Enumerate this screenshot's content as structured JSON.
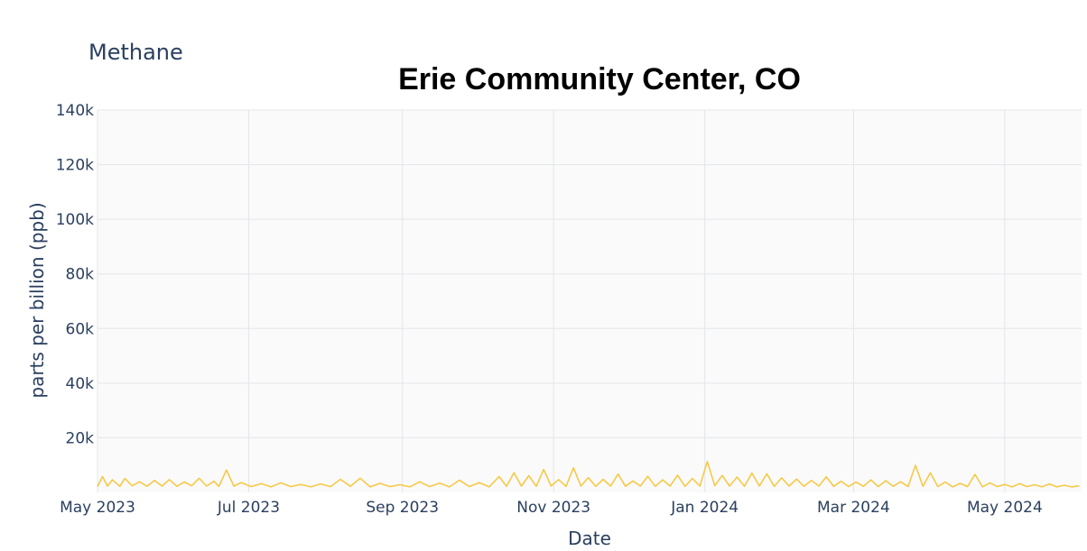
{
  "chart_data": {
    "type": "line",
    "title": "Erie Community Center, CO",
    "subtitle": "Methane",
    "xlabel": "Date",
    "ylabel": "parts per billion (ppb)",
    "x_tick_labels": [
      "May 2023",
      "Jul 2023",
      "Sep 2023",
      "Nov 2023",
      "Jan 2024",
      "Mar 2024",
      "May 2024"
    ],
    "x_ticks": [
      "2023-05-01",
      "2023-07-01",
      "2023-09-01",
      "2023-11-01",
      "2024-01-01",
      "2024-03-01",
      "2024-05-01"
    ],
    "xlim": [
      "2023-05-01",
      "2024-06-01"
    ],
    "ylim": [
      0,
      140000
    ],
    "y_ticks": [
      20000,
      40000,
      60000,
      80000,
      100000,
      120000,
      140000
    ],
    "y_tick_labels": [
      "20k",
      "40k",
      "60k",
      "80k",
      "100k",
      "120k",
      "140k"
    ],
    "grid": true,
    "legend": "none",
    "colors": {
      "line": "#f7c948",
      "grid": "#e3e6ea",
      "plot_background": "#fafafa",
      "text": "#2a3f5f"
    },
    "series": [
      {
        "x": [
          "2023-05-01",
          "2023-05-03",
          "2023-05-05",
          "2023-05-07",
          "2023-05-10",
          "2023-05-12",
          "2023-05-15",
          "2023-05-18",
          "2023-05-21",
          "2023-05-24",
          "2023-05-27",
          "2023-05-30",
          "2023-06-02",
          "2023-06-05",
          "2023-06-08",
          "2023-06-11",
          "2023-06-14",
          "2023-06-17",
          "2023-06-19",
          "2023-06-22",
          "2023-06-25",
          "2023-06-28",
          "2023-07-02",
          "2023-07-06",
          "2023-07-10",
          "2023-07-14",
          "2023-07-18",
          "2023-07-22",
          "2023-07-26",
          "2023-07-30",
          "2023-08-03",
          "2023-08-07",
          "2023-08-11",
          "2023-08-15",
          "2023-08-19",
          "2023-08-23",
          "2023-08-27",
          "2023-08-31",
          "2023-09-04",
          "2023-09-08",
          "2023-09-12",
          "2023-09-16",
          "2023-09-20",
          "2023-09-24",
          "2023-09-28",
          "2023-10-02",
          "2023-10-06",
          "2023-10-10",
          "2023-10-13",
          "2023-10-16",
          "2023-10-19",
          "2023-10-22",
          "2023-10-25",
          "2023-10-28",
          "2023-10-31",
          "2023-11-03",
          "2023-11-06",
          "2023-11-09",
          "2023-11-12",
          "2023-11-15",
          "2023-11-18",
          "2023-11-21",
          "2023-11-24",
          "2023-11-27",
          "2023-11-30",
          "2023-12-03",
          "2023-12-06",
          "2023-12-09",
          "2023-12-12",
          "2023-12-15",
          "2023-12-18",
          "2023-12-21",
          "2023-12-24",
          "2023-12-27",
          "2023-12-30",
          "2024-01-02",
          "2024-01-05",
          "2024-01-08",
          "2024-01-11",
          "2024-01-14",
          "2024-01-17",
          "2024-01-20",
          "2024-01-23",
          "2024-01-26",
          "2024-01-29",
          "2024-02-01",
          "2024-02-04",
          "2024-02-07",
          "2024-02-10",
          "2024-02-13",
          "2024-02-16",
          "2024-02-19",
          "2024-02-22",
          "2024-02-25",
          "2024-02-28",
          "2024-03-02",
          "2024-03-05",
          "2024-03-08",
          "2024-03-11",
          "2024-03-14",
          "2024-03-17",
          "2024-03-20",
          "2024-03-23",
          "2024-03-26",
          "2024-03-29",
          "2024-04-01",
          "2024-04-04",
          "2024-04-07",
          "2024-04-10",
          "2024-04-13",
          "2024-04-16",
          "2024-04-19",
          "2024-04-22",
          "2024-04-25",
          "2024-04-28",
          "2024-05-01",
          "2024-05-04",
          "2024-05-07",
          "2024-05-10",
          "2024-05-13",
          "2024-05-16",
          "2024-05-19",
          "2024-05-22",
          "2024-05-25",
          "2024-05-28",
          "2024-05-31"
        ],
        "values": [
          2100,
          5800,
          2300,
          4600,
          2200,
          5100,
          2400,
          3900,
          2200,
          4400,
          2300,
          4700,
          2200,
          3800,
          2400,
          5200,
          2300,
          4100,
          2200,
          8200,
          2300,
          3600,
          2100,
          3200,
          2000,
          3500,
          2100,
          2900,
          2000,
          3100,
          2100,
          4800,
          2200,
          5200,
          2000,
          3300,
          2100,
          2800,
          2000,
          3900,
          2100,
          3400,
          2000,
          4500,
          2100,
          3600,
          2000,
          5800,
          2200,
          7200,
          2300,
          6100,
          2200,
          8400,
          2300,
          4700,
          2200,
          9000,
          2300,
          5400,
          2200,
          4800,
          2300,
          6700,
          2200,
          4200,
          2300,
          5900,
          2200,
          4600,
          2300,
          6300,
          2200,
          5100,
          2300,
          11300,
          2400,
          6200,
          2300,
          5600,
          2200,
          7100,
          2300,
          6800,
          2200,
          5300,
          2300,
          4900,
          2200,
          4400,
          2300,
          5700,
          2200,
          4100,
          2100,
          3800,
          2200,
          4600,
          2100,
          4300,
          2200,
          3900,
          2100,
          9900,
          2200,
          7200,
          2100,
          3800,
          2000,
          3300,
          2100,
          6600,
          2000,
          3500,
          2100,
          2900,
          2000,
          3200,
          2100,
          2800,
          2000,
          3100,
          2000,
          2600,
          2000,
          2400
        ]
      }
    ]
  }
}
